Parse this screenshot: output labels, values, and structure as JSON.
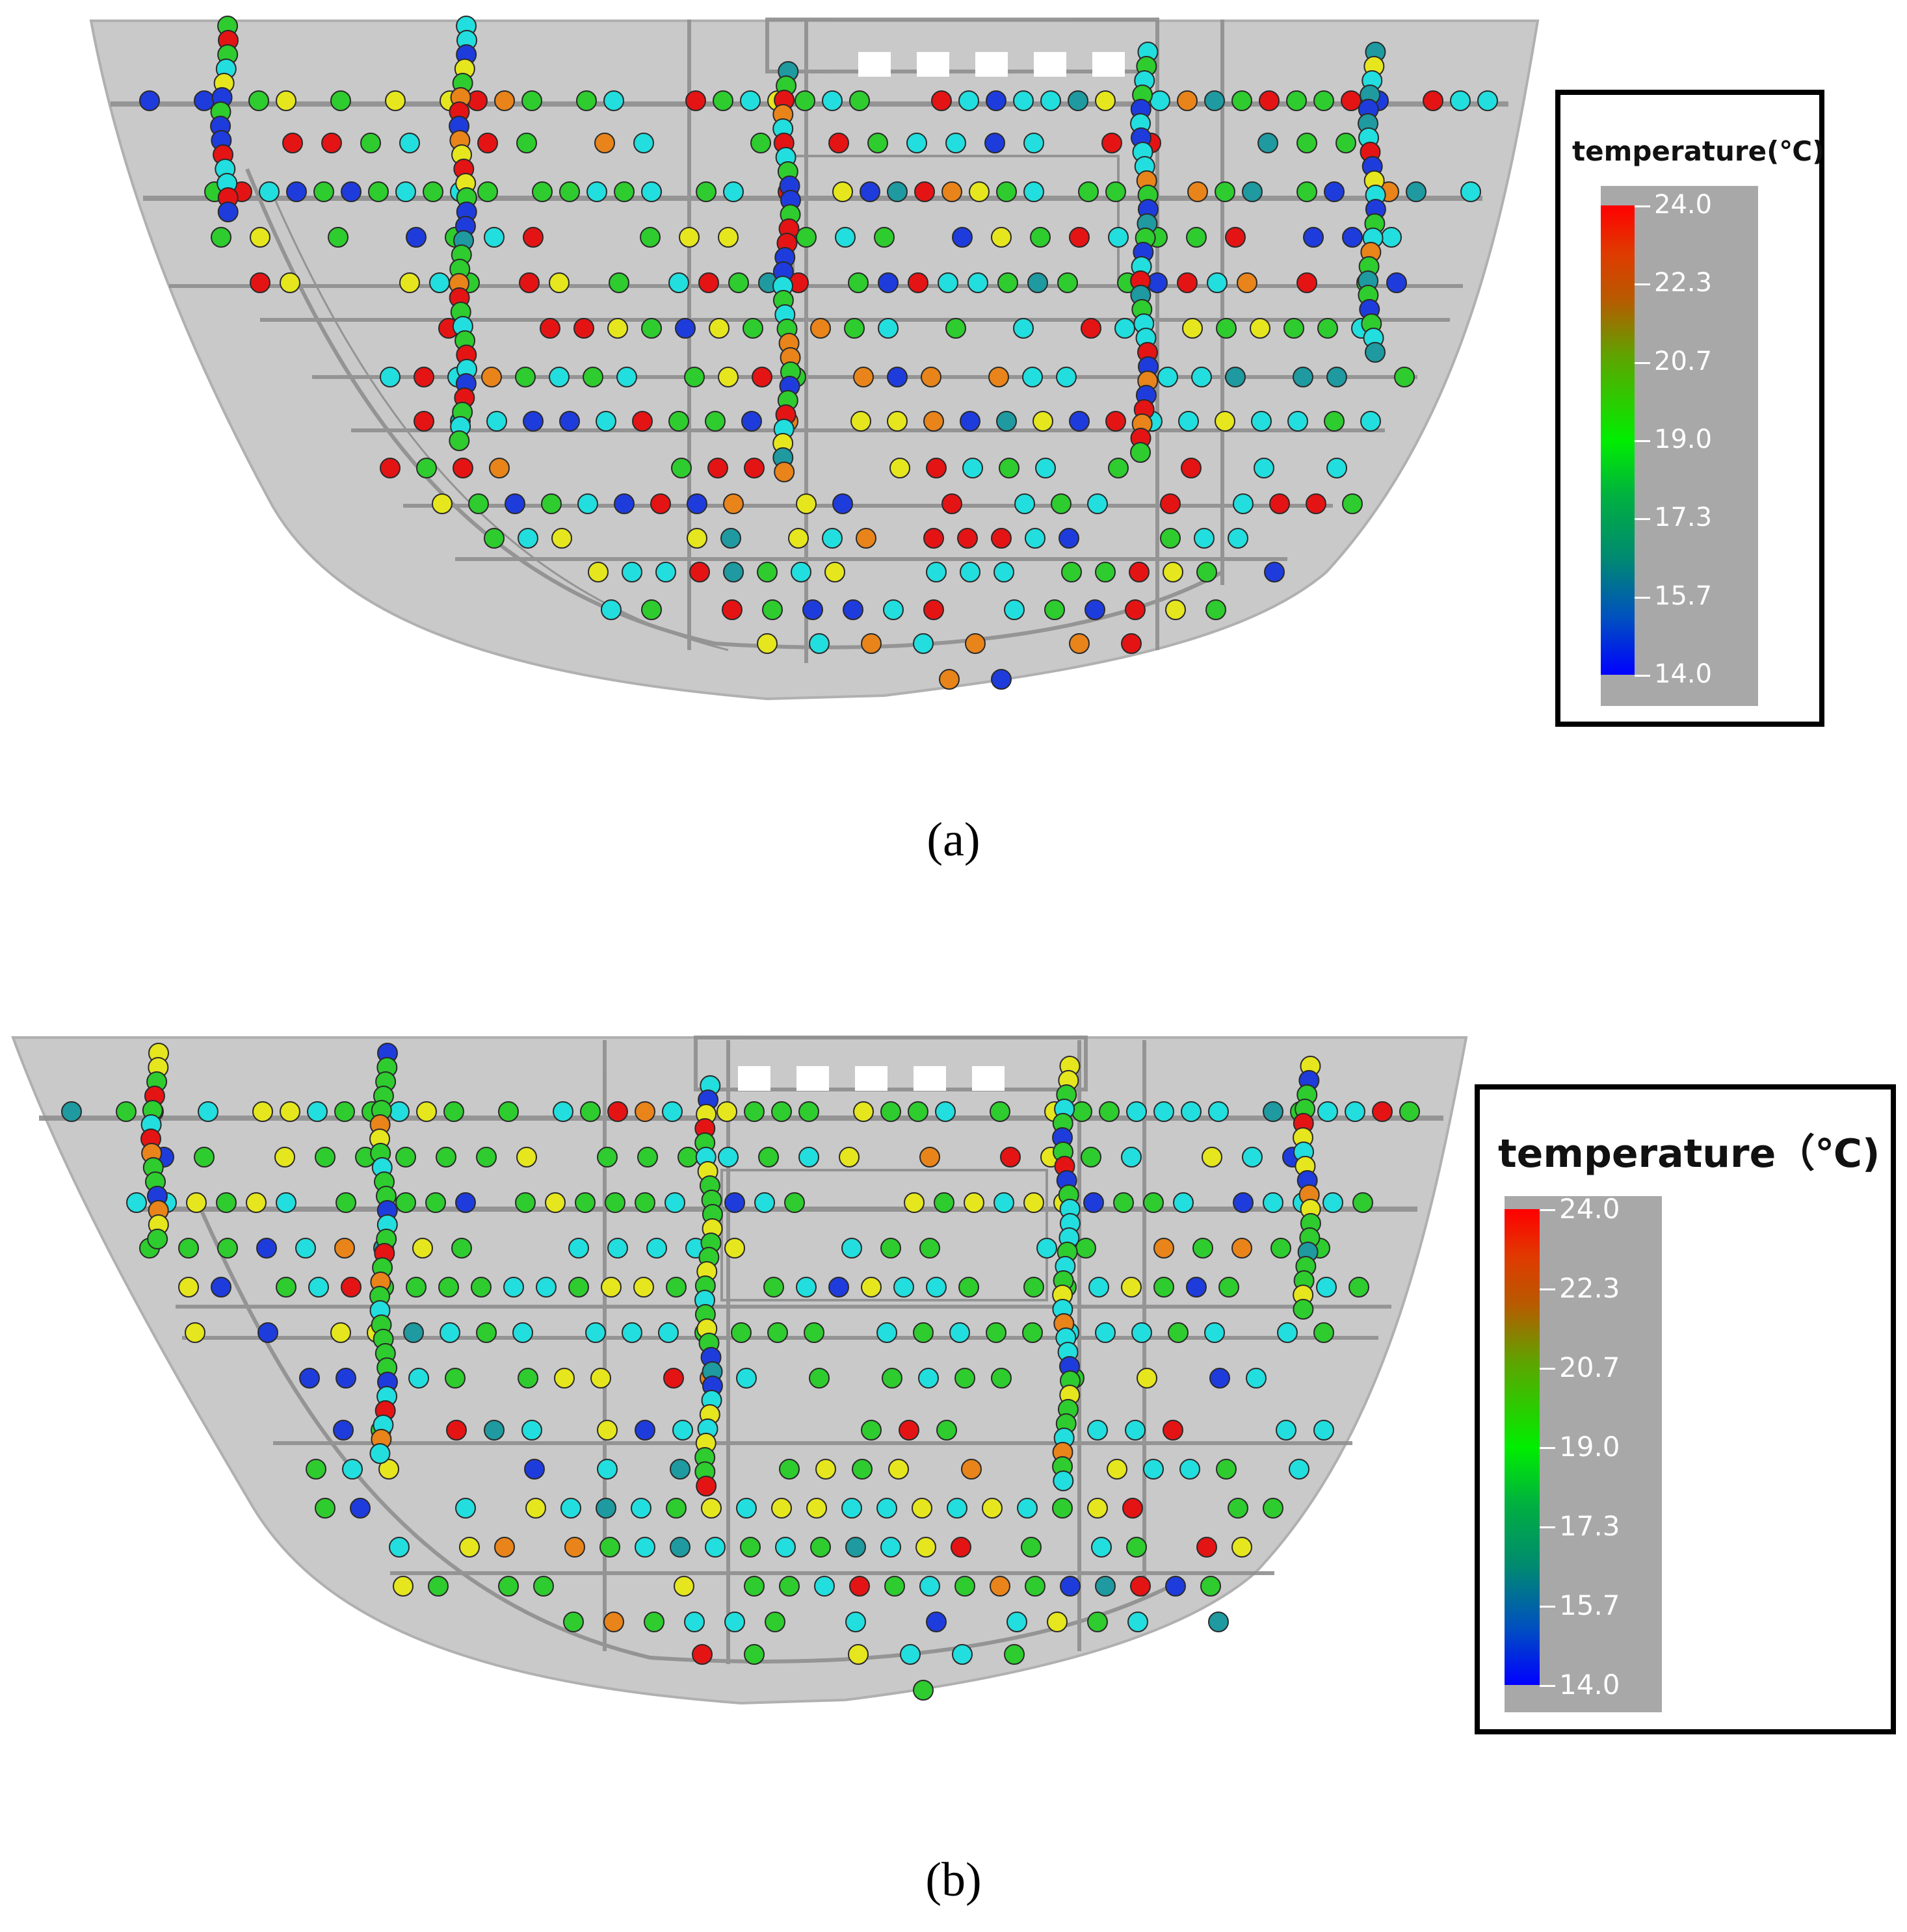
{
  "panels": [
    {
      "caption": "(a)",
      "legend": {
        "title": "temperature(℃)",
        "scale_min": 14.0,
        "scale_max": 24.0,
        "ticks": [
          "24.0",
          "22.3",
          "20.7",
          "19.0",
          "17.3",
          "15.7",
          "14.0"
        ]
      },
      "colors": {
        "shell": "#c9c9c9",
        "structure": "#8f8f8f"
      }
    },
    {
      "caption": "(b)",
      "legend": {
        "title": "temperature（℃)",
        "scale_min": 14.0,
        "scale_max": 24.0,
        "ticks": [
          "24.0",
          "22.3",
          "20.7",
          "19.0",
          "17.3",
          "15.7",
          "14.0"
        ]
      },
      "colors": {
        "shell": "#c9c9c9",
        "structure": "#8f8f8f"
      }
    }
  ],
  "sensor_colors": {
    "red": "#e41414",
    "orange": "#e8841a",
    "yellow": "#e6e61e",
    "green": "#2ecc2e",
    "cyan": "#22dede",
    "blue": "#1e3cdc",
    "teal": "#1e9aa0"
  }
}
